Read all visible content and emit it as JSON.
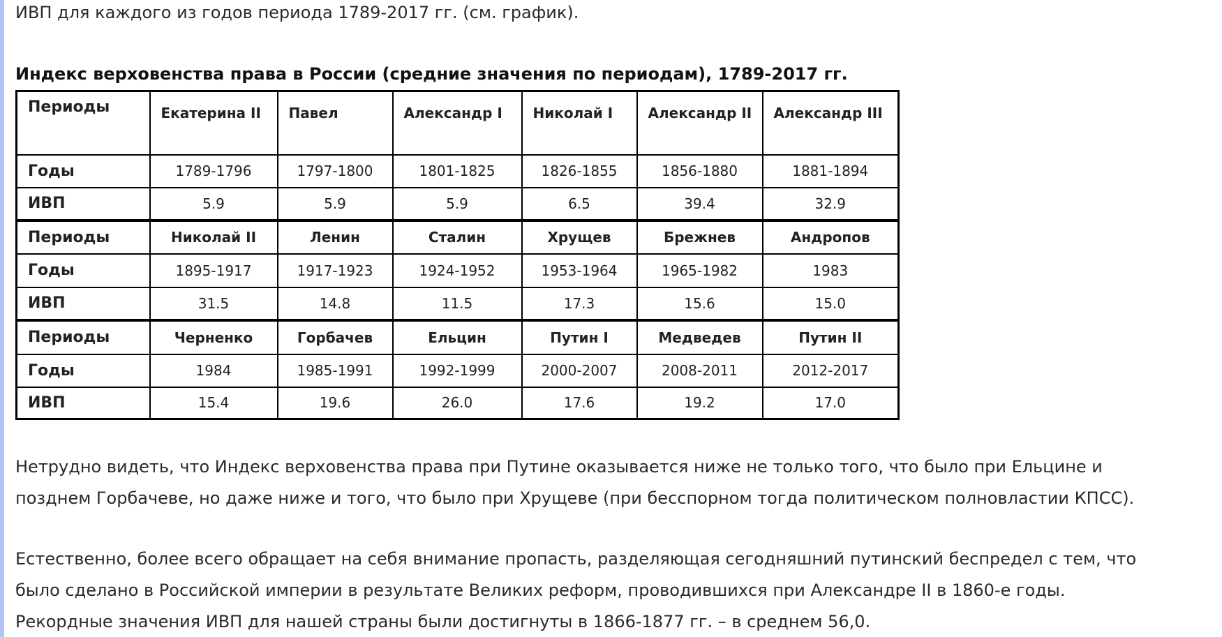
{
  "intro_line": "ИВП для каждого из годов периода 1789-2017 гг. (см. график).",
  "table_title": "Индекс верховенства права в России (средние значения по периодам), 1789-2017 гг.",
  "row_labels": {
    "periods": "Периоды",
    "years": "Годы",
    "index": "ИВП"
  },
  "groups": [
    {
      "periods": [
        "Екатерина II",
        "Павел",
        "Александр I",
        "Николай I",
        "Александр II",
        "Александр III"
      ],
      "years": [
        "1789-1796",
        "1797-1800",
        "1801-1825",
        "1826-1855",
        "1856-1880",
        "1881-1894"
      ],
      "index": [
        "5.9",
        "5.9",
        "5.9",
        "6.5",
        "39.4",
        "32.9"
      ]
    },
    {
      "periods": [
        "Николай II",
        "Ленин",
        "Сталин",
        "Хрущев",
        "Брежнев",
        "Андропов"
      ],
      "years": [
        "1895-1917",
        "1917-1923",
        "1924-1952",
        "1953-1964",
        "1965-1982",
        "1983"
      ],
      "index": [
        "31.5",
        "14.8",
        "11.5",
        "17.3",
        "15.6",
        "15.0"
      ]
    },
    {
      "periods": [
        "Черненко",
        "Горбачев",
        "Ельцин",
        "Путин I",
        "Медведев",
        "Путин II"
      ],
      "years": [
        "1984",
        "1985-1991",
        "1992-1999",
        "2000-2007",
        "2008-2011",
        "2012-2017"
      ],
      "index": [
        "15.4",
        "19.6",
        "26.0",
        "17.6",
        "19.2",
        "17.0"
      ]
    }
  ],
  "paragraph1": [
    "Нетрудно видеть, что Индекс верховенства права при Путине оказывается ниже не только того, что было при Ельцине и",
    "позднем Горбачеве, но даже ниже и того, что было при Хрущеве (при бесспорном тогда политическом полновластии КПСС)."
  ],
  "paragraph2": [
    "Естественно, более всего обращает на себя внимание пропасть, разделяющая сегодняшний путинский беспредел с тем, что",
    "было сделано в Российской империи в результате Великих реформ, проводившихся при Александре II в 1860-е годы.",
    "Рекордные значения ИВП для нашей страны были достигнуты в 1866-1877 гг. – в среднем 56,0."
  ]
}
